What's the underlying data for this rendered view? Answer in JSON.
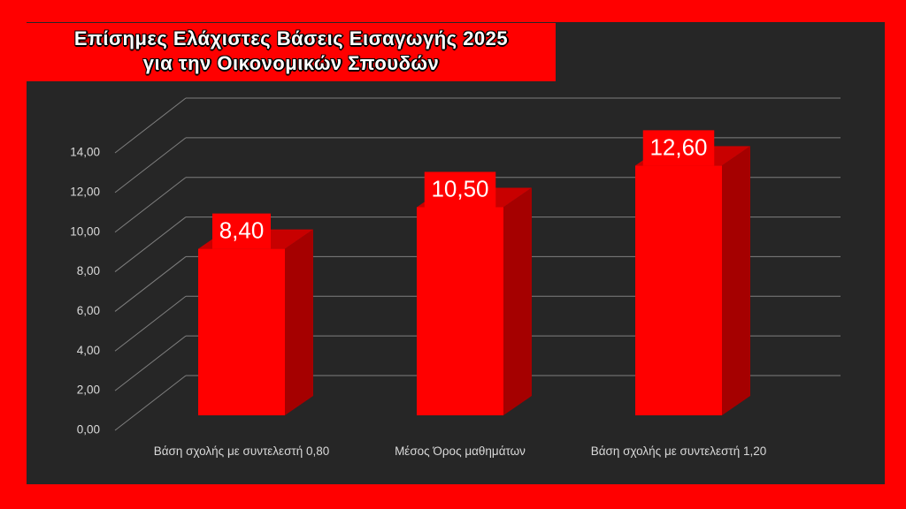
{
  "chart_data": {
    "type": "bar3d",
    "title": [
      "Επίσημες Ελάχιστες Βάσεις Εισαγωγής 2025",
      "για την Οικονομικών Σπουδών"
    ],
    "categories": [
      "Βάση σχολής με συντελεστή 0,80",
      "Μέσος Όρος μαθημάτων",
      "Βάση σχολής με συντελεστή 1,20"
    ],
    "values": [
      8.4,
      10.5,
      12.6
    ],
    "value_labels": [
      "8,40",
      "10,50",
      "12,60"
    ],
    "color": "#ff0000",
    "ylim": [
      0,
      14
    ],
    "yticks": [
      {
        "value": 0,
        "label": "0,00"
      },
      {
        "value": 2,
        "label": "2,00"
      },
      {
        "value": 4,
        "label": "4,00"
      },
      {
        "value": 6,
        "label": "6,00"
      },
      {
        "value": 8,
        "label": "8,00"
      },
      {
        "value": 10,
        "label": "10,00"
      },
      {
        "value": 12,
        "label": "12,00"
      },
      {
        "value": 14,
        "label": "14,00"
      }
    ],
    "grid": true
  }
}
